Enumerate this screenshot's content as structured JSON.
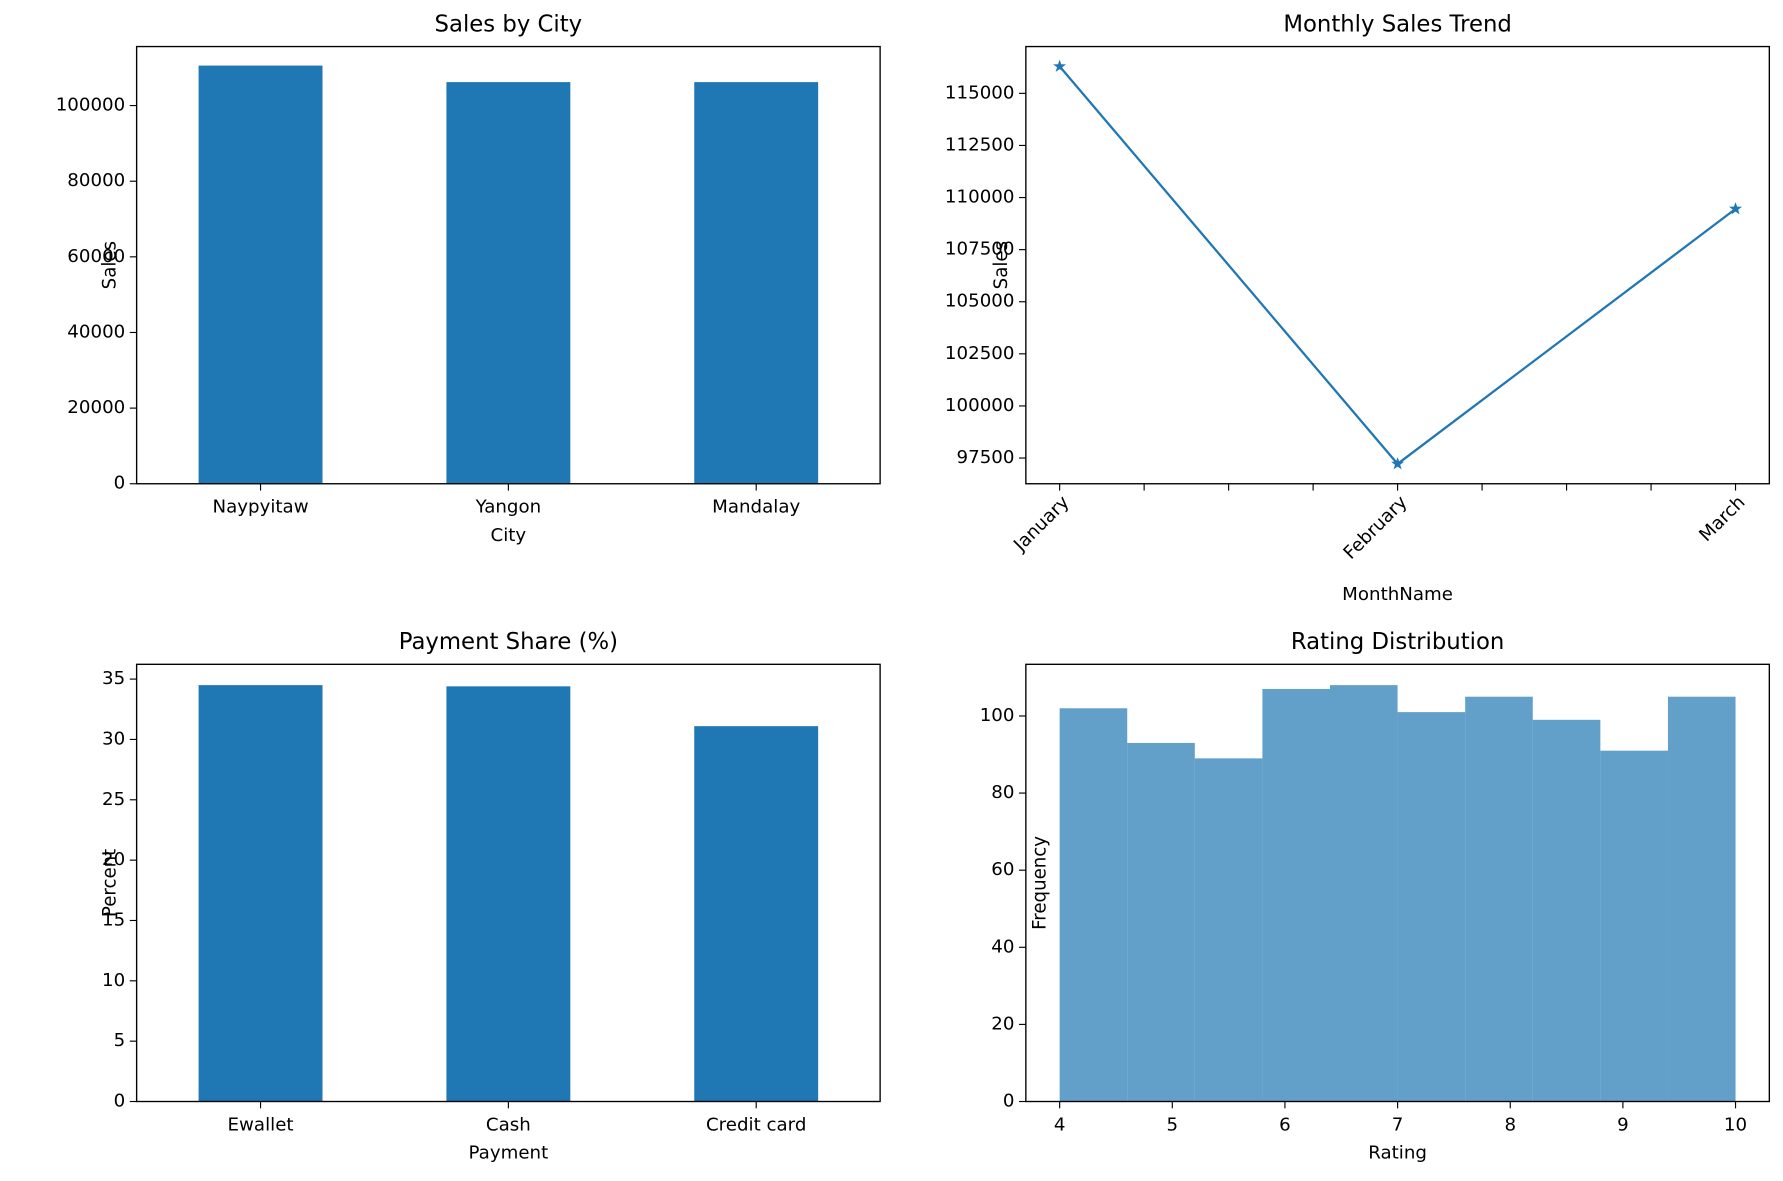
{
  "chart_data": [
    {
      "type": "bar",
      "title": "Sales by City",
      "xlabel": "City",
      "ylabel": "Sales",
      "categories": [
        "Naypyitaw",
        "Yangon",
        "Mandalay"
      ],
      "values": [
        110568.7,
        106200.4,
        106197.7
      ],
      "color": "#1f77b4",
      "ylim": [
        0,
        115600
      ],
      "yticks": [
        0,
        20000,
        40000,
        60000,
        80000,
        100000
      ]
    },
    {
      "type": "line",
      "title": "Monthly Sales Trend",
      "xlabel": "MonthName",
      "ylabel": "Sales",
      "categories": [
        "January",
        "February",
        "March"
      ],
      "values": [
        116291.9,
        97219.4,
        109455.5
      ],
      "color": "#1f77b4",
      "marker": "star",
      "ylim": [
        96266,
        117245
      ],
      "yticks": [
        97500,
        100000,
        102500,
        105000,
        107500,
        110000,
        112500,
        115000
      ]
    },
    {
      "type": "bar",
      "title": "Payment Share (%)",
      "xlabel": "Payment",
      "ylabel": "Percent",
      "categories": [
        "Ewallet",
        "Cash",
        "Credit card"
      ],
      "values": [
        34.5,
        34.4,
        31.1
      ],
      "color": "#1f77b4",
      "ylim": [
        0,
        36.225
      ],
      "yticks": [
        0,
        5,
        10,
        15,
        20,
        25,
        30,
        35
      ]
    },
    {
      "type": "histogram",
      "title": "Rating Distribution",
      "xlabel": "Rating",
      "ylabel": "Frequency",
      "bins": [
        4,
        4.6,
        5.2,
        5.8,
        6.4,
        7,
        7.6,
        8.2,
        8.8,
        9.4,
        10
      ],
      "values": [
        102,
        93,
        89,
        107,
        108,
        101,
        105,
        99,
        91,
        105
      ],
      "color": "#1f77b4",
      "opacity": 0.7,
      "xlim": [
        3.7,
        10.3
      ],
      "xticks": [
        4,
        5,
        6,
        7,
        8,
        9,
        10
      ],
      "ylim": [
        0,
        113.4
      ],
      "yticks": [
        0,
        20,
        40,
        60,
        80,
        100
      ]
    }
  ]
}
